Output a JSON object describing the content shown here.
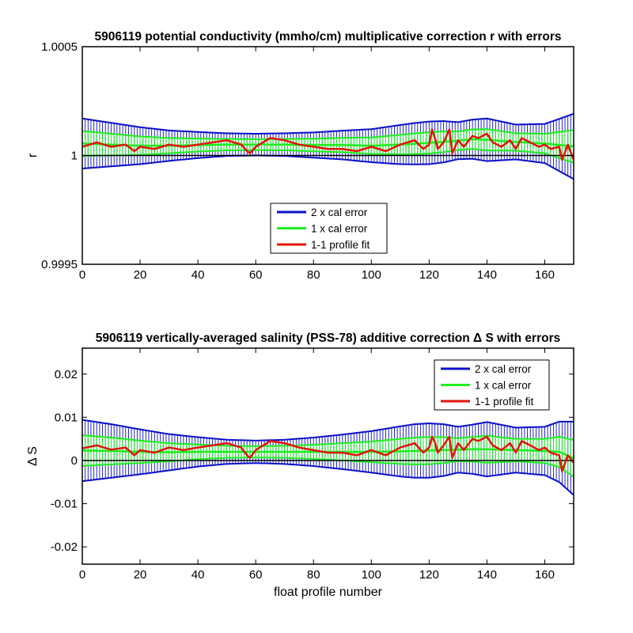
{
  "chart_data": [
    {
      "type": "line",
      "title": "5906119 potential conductivity (mmho/cm) multiplicative correction r with errors",
      "xlabel": "",
      "ylabel": "r",
      "xlim": [
        0,
        170
      ],
      "ylim": [
        0.9995,
        1.0005
      ],
      "x_ticks": [
        0,
        20,
        40,
        60,
        80,
        100,
        120,
        140,
        160
      ],
      "x_tick_labels": [
        "0",
        "20",
        "40",
        "60",
        "80",
        "100",
        "120",
        "140",
        "160"
      ],
      "y_ticks": [
        0.9995,
        1.0,
        1.0005
      ],
      "y_tick_labels": [
        "0.9995",
        "1",
        "1.0005"
      ],
      "reference_line": 1.0,
      "center_curve": {
        "x": [
          0,
          10,
          20,
          30,
          40,
          50,
          60,
          70,
          80,
          90,
          100,
          110,
          120,
          130,
          135,
          140,
          150,
          160,
          165,
          170
        ],
        "y": [
          1.000055,
          1.00005,
          1.000045,
          1.000045,
          1.000048,
          1.00005,
          1.00005,
          1.00005,
          1.000048,
          1.000048,
          1.000045,
          1.00005,
          1.000058,
          1.000068,
          1.000075,
          1.000072,
          1.000062,
          1.000055,
          1.000048,
          1.000042
        ]
      },
      "cal_error_2x": {
        "x": [
          0,
          10,
          20,
          30,
          40,
          50,
          60,
          70,
          80,
          90,
          100,
          110,
          115,
          120,
          125,
          130,
          135,
          140,
          150,
          160,
          165,
          170
        ],
        "y": [
          0.000115,
          0.0001,
          8.5e-05,
          7e-05,
          6e-05,
          5.2e-05,
          5e-05,
          5.2e-05,
          5.8e-05,
          6.6e-05,
          7.6e-05,
          9e-05,
          9.5e-05,
          9.8e-05,
          9.5e-05,
          8.5e-05,
          9e-05,
          9.8e-05,
          8e-05,
          9e-05,
          0.00012,
          0.00015
        ]
      },
      "cal_error_1x": {
        "x": [
          0,
          10,
          20,
          30,
          40,
          50,
          60,
          70,
          80,
          90,
          100,
          110,
          115,
          120,
          125,
          130,
          135,
          140,
          150,
          160,
          165,
          170
        ],
        "y": [
          5.75e-05,
          5e-05,
          4.25e-05,
          3.5e-05,
          3e-05,
          2.6e-05,
          2.5e-05,
          2.6e-05,
          2.9e-05,
          3.3e-05,
          3.8e-05,
          4.5e-05,
          4.75e-05,
          4.9e-05,
          4.75e-05,
          4.25e-05,
          4.5e-05,
          4.9e-05,
          4e-05,
          4.5e-05,
          6e-05,
          7.5e-05
        ]
      },
      "profile_fit": {
        "x": [
          0,
          5,
          10,
          15,
          18,
          20,
          25,
          30,
          35,
          40,
          45,
          50,
          55,
          57,
          58,
          60,
          65,
          70,
          75,
          80,
          85,
          90,
          95,
          100,
          105,
          110,
          115,
          118,
          120,
          121,
          122,
          123,
          125,
          127,
          128,
          130,
          132,
          135,
          137,
          140,
          142,
          145,
          148,
          150,
          152,
          155,
          158,
          160,
          162,
          165,
          166,
          168,
          170
        ],
        "y": [
          1.00004,
          1.00006,
          1.00004,
          1.00005,
          1.00002,
          1.00004,
          1.00003,
          1.00005,
          1.00004,
          1.00005,
          1.00006,
          1.00007,
          1.00005,
          1.00002,
          1.00001,
          1.00004,
          1.00008,
          1.00007,
          1.00005,
          1.00004,
          1.00003,
          1.00003,
          1.00002,
          1.00004,
          1.00002,
          1.00005,
          1.00007,
          1.00003,
          1.00005,
          1.00012,
          1.00008,
          1.00003,
          1.00006,
          1.00012,
          1.00001,
          1.00007,
          1.00004,
          1.00009,
          1.00008,
          1.0001,
          1.00006,
          1.00004,
          1.00007,
          1.00003,
          1.00008,
          1.00006,
          1.00004,
          1.00005,
          1.00003,
          1.00004,
          0.99998,
          1.00005,
          0.99998
        ]
      },
      "legend": {
        "placement": "bottom-center",
        "entries": [
          {
            "label": "2 x cal error",
            "color": "#0a10c8"
          },
          {
            "label": "1 x cal error",
            "color": "#1eee1e"
          },
          {
            "label": "1-1 profile fit",
            "color": "#e2140a"
          }
        ]
      },
      "grid": false
    },
    {
      "type": "line",
      "title": "5906119 vertically-averaged salinity (PSS-78) additive correction Δ S with errors",
      "xlabel": "float profile number",
      "ylabel": "Δ S",
      "xlim": [
        0,
        170
      ],
      "ylim": [
        -0.024,
        0.026
      ],
      "x_ticks": [
        0,
        20,
        40,
        60,
        80,
        100,
        120,
        140,
        160
      ],
      "x_tick_labels": [
        "0",
        "20",
        "40",
        "60",
        "80",
        "100",
        "120",
        "140",
        "160"
      ],
      "y_ticks": [
        -0.02,
        -0.01,
        0,
        0.01,
        0.02
      ],
      "y_tick_labels": [
        "-0.02",
        "-0.01",
        "0",
        "0.01",
        "0.02"
      ],
      "reference_line": 0,
      "center_curve": {
        "x": [
          0,
          10,
          20,
          30,
          40,
          50,
          60,
          70,
          80,
          90,
          100,
          110,
          120,
          130,
          135,
          140,
          150,
          160,
          165,
          170
        ],
        "y": [
          0.0023,
          0.0022,
          0.002,
          0.0019,
          0.002,
          0.002,
          0.002,
          0.002,
          0.002,
          0.002,
          0.002,
          0.0021,
          0.0023,
          0.0025,
          0.0026,
          0.0026,
          0.0024,
          0.0022,
          0.002,
          0.0005
        ]
      },
      "cal_error_2x": {
        "x": [
          0,
          10,
          20,
          30,
          40,
          50,
          60,
          70,
          80,
          90,
          100,
          110,
          115,
          120,
          125,
          130,
          135,
          140,
          150,
          160,
          165,
          170
        ],
        "y": [
          0.0071,
          0.0062,
          0.0052,
          0.0042,
          0.0034,
          0.0028,
          0.0026,
          0.0028,
          0.0033,
          0.004,
          0.0048,
          0.0058,
          0.0062,
          0.0063,
          0.006,
          0.0053,
          0.0057,
          0.0063,
          0.0052,
          0.0056,
          0.007,
          0.0085
        ]
      },
      "cal_error_1x": {
        "x": [
          0,
          10,
          20,
          30,
          40,
          50,
          60,
          70,
          80,
          90,
          100,
          110,
          115,
          120,
          125,
          130,
          135,
          140,
          150,
          160,
          165,
          170
        ],
        "y": [
          0.00355,
          0.0031,
          0.0026,
          0.0021,
          0.0017,
          0.0014,
          0.0013,
          0.0014,
          0.00165,
          0.002,
          0.0024,
          0.0029,
          0.0031,
          0.00315,
          0.003,
          0.00265,
          0.00285,
          0.00315,
          0.0026,
          0.0028,
          0.0035,
          0.00425
        ]
      },
      "profile_fit": {
        "x": [
          0,
          5,
          10,
          15,
          18,
          20,
          25,
          30,
          35,
          40,
          45,
          50,
          55,
          57,
          58,
          60,
          65,
          70,
          75,
          80,
          85,
          90,
          95,
          100,
          105,
          110,
          115,
          118,
          120,
          121,
          122,
          123,
          125,
          127,
          128,
          130,
          132,
          135,
          137,
          140,
          142,
          145,
          148,
          150,
          152,
          155,
          158,
          160,
          162,
          165,
          166,
          168,
          170
        ],
        "y": [
          0.0028,
          0.0035,
          0.0025,
          0.003,
          0.0012,
          0.0024,
          0.0018,
          0.003,
          0.0024,
          0.003,
          0.0035,
          0.004,
          0.003,
          0.0012,
          0.0006,
          0.0024,
          0.0045,
          0.004,
          0.003,
          0.0024,
          0.0018,
          0.0018,
          0.0012,
          0.0024,
          0.0012,
          0.003,
          0.004,
          0.0018,
          0.003,
          0.0055,
          0.0042,
          0.0018,
          0.0035,
          0.0055,
          0.0006,
          0.004,
          0.0024,
          0.005,
          0.0045,
          0.0055,
          0.0035,
          0.0024,
          0.004,
          0.0018,
          0.0045,
          0.0035,
          0.0024,
          0.003,
          0.0018,
          0.0012,
          -0.0025,
          0.0012,
          -0.0005
        ]
      },
      "legend": {
        "placement": "top-right",
        "entries": [
          {
            "label": "2 x cal error",
            "color": "#0a10c8"
          },
          {
            "label": "1 x cal error",
            "color": "#1eee1e"
          },
          {
            "label": "1-1 profile fit",
            "color": "#e2140a"
          }
        ]
      },
      "grid": false
    }
  ]
}
